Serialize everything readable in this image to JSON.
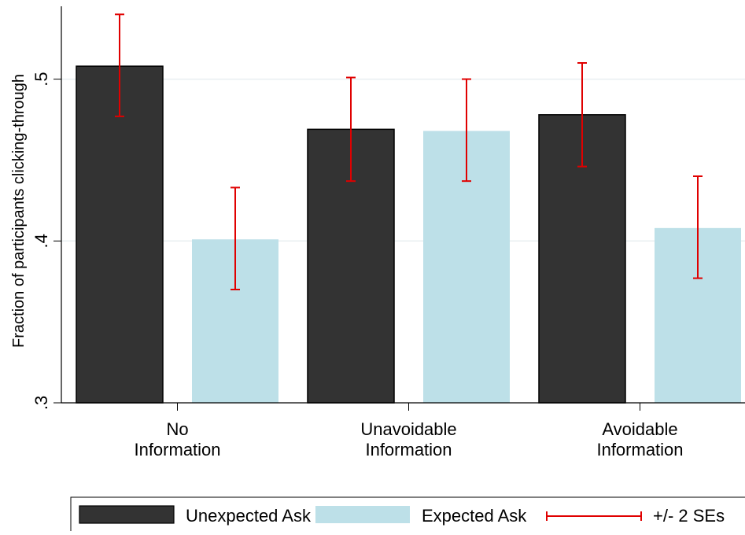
{
  "chart_data": {
    "type": "bar",
    "categories": [
      [
        "No",
        "Information"
      ],
      [
        "Unavoidable",
        "Information"
      ],
      [
        "Avoidable",
        "Information"
      ]
    ],
    "series": [
      {
        "name": "Unexpected Ask",
        "color": "#333333",
        "values": [
          0.508,
          0.469,
          0.478
        ],
        "ci_low": [
          0.477,
          0.437,
          0.446
        ],
        "ci_high": [
          0.54,
          0.501,
          0.51
        ]
      },
      {
        "name": "Expected Ask",
        "color": "#bde0e8",
        "values": [
          0.401,
          0.468,
          0.408
        ],
        "ci_low": [
          0.37,
          0.437,
          0.377
        ],
        "ci_high": [
          0.433,
          0.5,
          0.44
        ]
      }
    ],
    "errorbar_color": "#e00000",
    "ylabel": "Fraction of participants clicking-through",
    "yticks": [
      {
        "value": 0.3,
        "label": ".3"
      },
      {
        "value": 0.4,
        "label": ".4"
      },
      {
        "value": 0.5,
        "label": ".5"
      }
    ],
    "ylim": [
      0.3,
      0.545
    ],
    "grid": true,
    "legend": {
      "placement": "bottom",
      "items": [
        {
          "label": "Unexpected Ask",
          "kind": "box",
          "color": "#333333"
        },
        {
          "label": "Expected Ask",
          "kind": "box",
          "color": "#bde0e8"
        },
        {
          "label": "+/- 2 SEs",
          "kind": "errorbar",
          "color": "#e00000"
        }
      ]
    }
  }
}
